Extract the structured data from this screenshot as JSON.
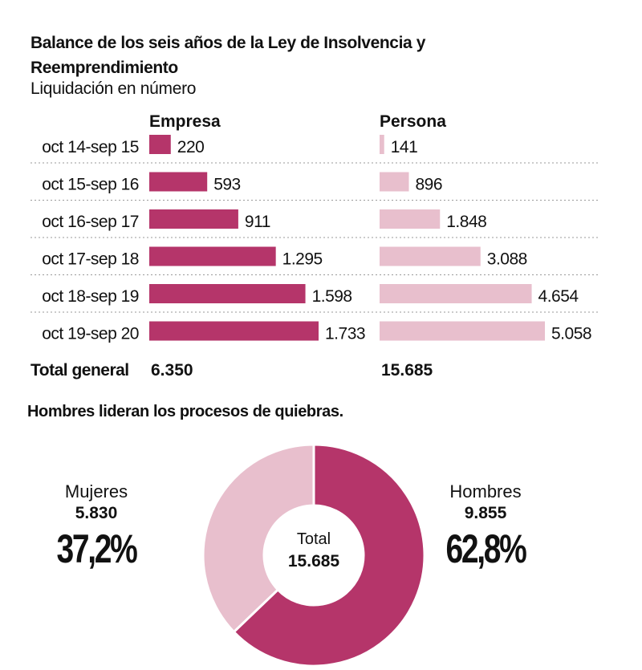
{
  "header": {
    "title": "Balance de los seis años de la Ley de Insolvencia y Reemprendimiento",
    "subtitle": "Liquidación en número"
  },
  "colors": {
    "empresa": "#b5356a",
    "persona": "#e8bfcd",
    "separator": "#9a9a9a"
  },
  "chart_data": [
    {
      "type": "bar",
      "orientation": "horizontal",
      "title": "Balance de los seis años de la Ley de Insolvencia y Reemprendimiento",
      "subtitle": "Liquidación en número",
      "categories": [
        "oct 14-sep 15",
        "oct 15-sep 16",
        "oct 16-sep 17",
        "oct 17-sep 18",
        "oct 18-sep 19",
        "oct 19-sep 20"
      ],
      "series": [
        {
          "name": "Empresa",
          "values": [
            220,
            593,
            911,
            1295,
            1598,
            1733
          ],
          "labels": [
            "220",
            "593",
            "911",
            "1.295",
            "1.598",
            "1.733"
          ]
        },
        {
          "name": "Persona",
          "values": [
            141,
            896,
            1848,
            3088,
            4654,
            5058
          ],
          "labels": [
            "141",
            "896",
            "1.848",
            "3.088",
            "4.654",
            "5.058"
          ]
        }
      ],
      "totals_label": "Total general",
      "totals": [
        "6.350",
        "15.685"
      ],
      "scales": {
        "Empresa": 1733,
        "Persona": 5058
      }
    },
    {
      "type": "pie",
      "variant": "donut",
      "title": "Hombres lideran los procesos de quiebras.",
      "center_label": "Total",
      "center_value": "15.685",
      "slices": [
        {
          "name": "Hombres",
          "value": 9855,
          "value_label": "9.855",
          "percent_label": "62,8%",
          "color": "#b5356a"
        },
        {
          "name": "Mujeres",
          "value": 5830,
          "value_label": "5.830",
          "percent_label": "37,2%",
          "color": "#e8bfcd"
        }
      ]
    }
  ]
}
